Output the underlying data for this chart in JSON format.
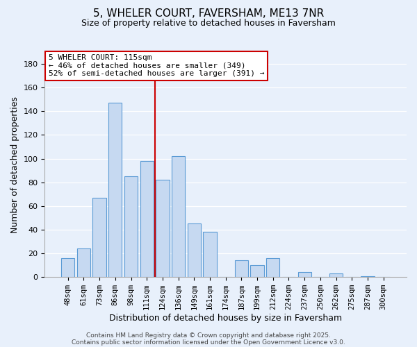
{
  "title": "5, WHELER COURT, FAVERSHAM, ME13 7NR",
  "subtitle": "Size of property relative to detached houses in Faversham",
  "xlabel": "Distribution of detached houses by size in Faversham",
  "ylabel": "Number of detached properties",
  "bar_labels": [
    "48sqm",
    "61sqm",
    "73sqm",
    "86sqm",
    "98sqm",
    "111sqm",
    "124sqm",
    "136sqm",
    "149sqm",
    "161sqm",
    "174sqm",
    "187sqm",
    "199sqm",
    "212sqm",
    "224sqm",
    "237sqm",
    "250sqm",
    "262sqm",
    "275sqm",
    "287sqm",
    "300sqm"
  ],
  "bar_values": [
    16,
    24,
    67,
    147,
    85,
    98,
    82,
    102,
    45,
    38,
    0,
    14,
    10,
    16,
    0,
    4,
    0,
    3,
    0,
    1,
    0
  ],
  "bar_color": "#c6d9f1",
  "bar_edge_color": "#5b9bd5",
  "ylim": [
    0,
    190
  ],
  "yticks": [
    0,
    20,
    40,
    60,
    80,
    100,
    120,
    140,
    160,
    180
  ],
  "vline_x": 5.5,
  "vline_color": "#cc0000",
  "annotation_title": "5 WHELER COURT: 115sqm",
  "annotation_line1": "← 46% of detached houses are smaller (349)",
  "annotation_line2": "52% of semi-detached houses are larger (391) →",
  "footer1": "Contains HM Land Registry data © Crown copyright and database right 2025.",
  "footer2": "Contains public sector information licensed under the Open Government Licence v3.0.",
  "background_color": "#e8f0fb",
  "grid_color": "#ffffff",
  "figsize": [
    6.0,
    5.0
  ],
  "dpi": 100
}
